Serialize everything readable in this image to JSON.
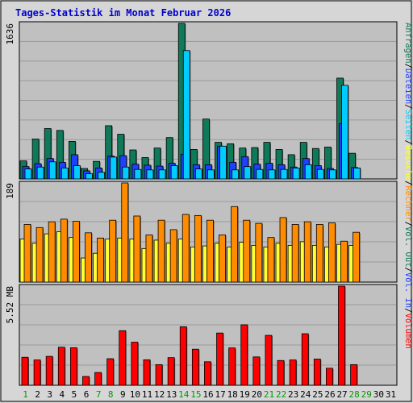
{
  "title": "Tages-Statistik im Monat Februar 2026",
  "colors": {
    "background": "#d6d6d6",
    "plot_bg": "#c0c0c0",
    "title": "#0000cc",
    "anfragen": "#0f7a5a",
    "dateien": "#1e40ff",
    "seiten": "#00ccff",
    "besuche": "#ffff33",
    "rechner": "#ff8c00",
    "volumen": "#ff0000",
    "weekend_label": "#009900",
    "weekday_label": "#000000"
  },
  "right_labels": {
    "panel1": [
      {
        "text": "Anfragen",
        "color": "#0f7a5a"
      },
      {
        "text": "/",
        "color": "#000000"
      },
      {
        "text": "Dateien",
        "color": "#1e40ff"
      },
      {
        "text": "/",
        "color": "#000000"
      },
      {
        "text": "Seiten",
        "color": "#00ccff"
      },
      {
        "text": "/",
        "color": "#000000"
      },
      {
        "text": "Besuche",
        "color": "#ffff33"
      },
      {
        "text": "/",
        "color": "#000000"
      },
      {
        "text": "Rechner",
        "color": "#ff8c00"
      },
      {
        "text": "/",
        "color": "#000000"
      },
      {
        "text": "Vol. Out",
        "color": "#0f7a5a"
      },
      {
        "text": "/",
        "color": "#000000"
      },
      {
        "text": "Vol. In",
        "color": "#1e40ff"
      },
      {
        "text": "/",
        "color": "#000000"
      },
      {
        "text": "Volumen",
        "color": "#ff0000"
      }
    ]
  },
  "chart_data": [
    {
      "type": "bar",
      "panel": "requests",
      "ymax_label": "1636",
      "ylim": [
        0,
        1636
      ],
      "categories": [
        "1",
        "2",
        "3",
        "4",
        "5",
        "6",
        "7",
        "8",
        "9",
        "10",
        "11",
        "12",
        "13",
        "14",
        "15",
        "16",
        "17",
        "18",
        "19",
        "20",
        "21",
        "22",
        "23",
        "24",
        "25",
        "26",
        "27",
        "28",
        "29",
        "30",
        "31"
      ],
      "weekend_days": [
        "1",
        "7",
        "8",
        "14",
        "15",
        "21",
        "22",
        "28",
        "29"
      ],
      "series": [
        {
          "name": "Anfragen",
          "color": "#0f7a5a",
          "values": [
            190,
            420,
            530,
            510,
            395,
            110,
            185,
            560,
            470,
            305,
            225,
            325,
            435,
            1636,
            310,
            630,
            385,
            370,
            325,
            330,
            385,
            310,
            255,
            385,
            320,
            335,
            1060,
            270,
            0,
            0,
            0
          ]
        },
        {
          "name": "Dateien",
          "color": "#1e40ff",
          "values": [
            130,
            160,
            215,
            175,
            255,
            85,
            115,
            240,
            245,
            155,
            145,
            135,
            165,
            260,
            150,
            150,
            345,
            175,
            235,
            155,
            165,
            150,
            125,
            215,
            140,
            110,
            580,
            120,
            0,
            0,
            0
          ]
        },
        {
          "name": "Seiten",
          "color": "#00ccff",
          "values": [
            105,
            125,
            180,
            115,
            140,
            55,
            70,
            230,
            125,
            100,
            95,
            95,
            140,
            1350,
            105,
            95,
            345,
            95,
            130,
            100,
            95,
            100,
            115,
            150,
            100,
            95,
            985,
            115,
            0,
            0,
            0
          ]
        }
      ]
    },
    {
      "type": "bar",
      "panel": "visits",
      "ymax_label": "189",
      "ylim": [
        0,
        189
      ],
      "categories": [
        "1",
        "2",
        "3",
        "4",
        "5",
        "6",
        "7",
        "8",
        "9",
        "10",
        "11",
        "12",
        "13",
        "14",
        "15",
        "16",
        "17",
        "18",
        "19",
        "20",
        "21",
        "22",
        "23",
        "24",
        "25",
        "26",
        "27",
        "28",
        "29",
        "30",
        "31"
      ],
      "series": [
        {
          "name": "Besuche",
          "color": "#ffff33",
          "values": [
            82,
            74,
            92,
            96,
            85,
            46,
            55,
            82,
            84,
            82,
            64,
            80,
            74,
            82,
            67,
            69,
            74,
            67,
            76,
            70,
            67,
            74,
            70,
            77,
            70,
            67,
            72,
            70,
            0,
            0,
            0
          ]
        },
        {
          "name": "Rechner",
          "color": "#ff8c00",
          "values": [
            110,
            104,
            115,
            120,
            116,
            94,
            84,
            118,
            189,
            126,
            90,
            118,
            100,
            129,
            127,
            118,
            90,
            144,
            118,
            112,
            85,
            123,
            110,
            115,
            110,
            113,
            78,
            95,
            0,
            0,
            0
          ]
        }
      ]
    },
    {
      "type": "bar",
      "panel": "volume",
      "ymax_label": "5.52 MB",
      "ylim": [
        0,
        5.52
      ],
      "categories": [
        "1",
        "2",
        "3",
        "4",
        "5",
        "6",
        "7",
        "8",
        "9",
        "10",
        "11",
        "12",
        "13",
        "14",
        "15",
        "16",
        "17",
        "18",
        "19",
        "20",
        "21",
        "22",
        "23",
        "24",
        "25",
        "26",
        "27",
        "28",
        "29",
        "30",
        "31"
      ],
      "series": [
        {
          "name": "Volumen",
          "color": "#ff0000",
          "values": [
            1.56,
            1.41,
            1.61,
            2.12,
            2.09,
            0.49,
            0.71,
            1.48,
            3.04,
            2.4,
            1.42,
            1.15,
            1.54,
            3.26,
            2.01,
            1.31,
            2.91,
            2.08,
            3.37,
            1.58,
            2.78,
            1.38,
            1.41,
            2.87,
            1.46,
            0.95,
            5.52,
            1.15,
            0,
            0,
            0
          ]
        }
      ]
    }
  ]
}
